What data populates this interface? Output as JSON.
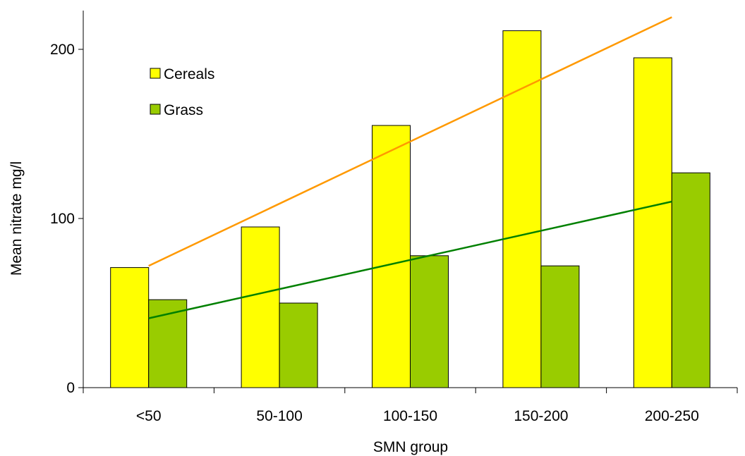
{
  "chart_data": {
    "type": "bar",
    "title": "",
    "xlabel": "SMN group",
    "ylabel": "Mean nitrate mg/l",
    "categories": [
      "<50",
      "50-100",
      "100-150",
      "150-200",
      "200-250"
    ],
    "ylim": [
      0,
      225
    ],
    "yticks": [
      0,
      100,
      200
    ],
    "grid": false,
    "legend": "top-left",
    "series": [
      {
        "name": "Cereals",
        "values": [
          71,
          95,
          155,
          211,
          195
        ],
        "color": "#ffff00"
      },
      {
        "name": "Grass",
        "values": [
          52,
          50,
          78,
          72,
          127
        ],
        "color": "#99cc00"
      }
    ],
    "trendlines": [
      {
        "series": "Cereals",
        "start": 72,
        "end": 219,
        "color": "#ff9900"
      },
      {
        "series": "Grass",
        "start": 41,
        "end": 110,
        "color": "#008000"
      }
    ]
  }
}
